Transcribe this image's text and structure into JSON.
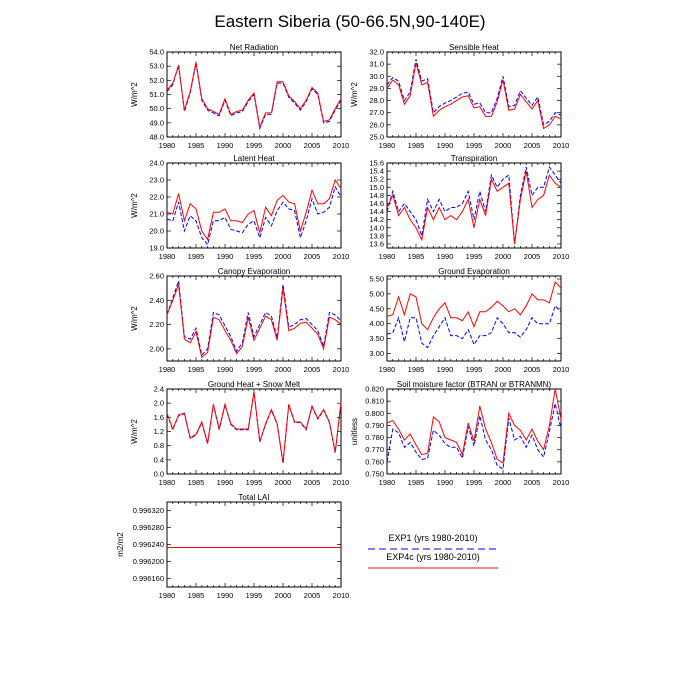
{
  "title": "Eastern Siberia (50-66.5N,90-140E)",
  "legend": {
    "items": [
      {
        "label": "EXP1 (yrs 1980-2010)",
        "color": "#0000ff",
        "dash": true
      },
      {
        "label": "EXP4c (yrs 1980-2010)",
        "color": "#ff0000",
        "dash": false
      }
    ]
  },
  "chart_data": [
    {
      "type": "line",
      "title": "Net Radiation",
      "ylabel": "W/m^2",
      "xlim": [
        1980,
        2010
      ],
      "ylim": [
        48.0,
        54.0
      ],
      "xticks": [
        1980,
        1985,
        1990,
        1995,
        2000,
        2005,
        2010
      ],
      "yticks": [
        "48.0",
        "49.0",
        "50.0",
        "51.0",
        "52.0",
        "53.0",
        "54.0"
      ],
      "x": [
        1980,
        1981,
        1982,
        1983,
        1984,
        1985,
        1986,
        1987,
        1988,
        1989,
        1990,
        1991,
        1992,
        1993,
        1994,
        1995,
        1996,
        1997,
        1998,
        1999,
        2000,
        2001,
        2002,
        2003,
        2004,
        2005,
        2006,
        2007,
        2008,
        2009,
        2010
      ],
      "series": [
        {
          "name": "EXP1",
          "values": [
            51.2,
            51.7,
            53.1,
            49.8,
            51.1,
            53.2,
            50.6,
            49.9,
            49.7,
            49.5,
            50.6,
            49.5,
            49.7,
            49.8,
            50.5,
            51.0,
            48.6,
            49.6,
            49.6,
            51.8,
            51.8,
            50.8,
            50.4,
            49.9,
            50.5,
            51.4,
            51.0,
            49.0,
            49.1,
            49.9,
            50.6
          ]
        },
        {
          "name": "EXP4c",
          "values": [
            51.3,
            51.8,
            53.0,
            49.9,
            51.2,
            53.3,
            50.7,
            50.0,
            49.8,
            49.6,
            50.7,
            49.6,
            49.8,
            49.9,
            50.6,
            51.1,
            48.7,
            49.7,
            49.7,
            51.9,
            51.9,
            50.9,
            50.5,
            50.0,
            50.6,
            51.5,
            51.1,
            49.1,
            49.2,
            50.0,
            50.7
          ]
        }
      ]
    },
    {
      "type": "line",
      "title": "Sensible Heat",
      "ylabel": "W/m^2",
      "xlim": [
        1980,
        2010
      ],
      "ylim": [
        25.0,
        32.0
      ],
      "xticks": [
        1980,
        1985,
        1990,
        1995,
        2000,
        2005,
        2010
      ],
      "yticks": [
        "25.0",
        "26.0",
        "27.0",
        "28.0",
        "29.0",
        "30.0",
        "31.0",
        "32.0"
      ],
      "x": [
        1980,
        1981,
        1982,
        1983,
        1984,
        1985,
        1986,
        1987,
        1988,
        1989,
        1990,
        1991,
        1992,
        1993,
        1994,
        1995,
        1996,
        1997,
        1998,
        1999,
        2000,
        2001,
        2002,
        2003,
        2004,
        2005,
        2006,
        2007,
        2008,
        2009,
        2010
      ],
      "series": [
        {
          "name": "EXP1",
          "values": [
            29.3,
            29.9,
            29.6,
            28.0,
            28.7,
            31.4,
            29.6,
            29.8,
            27.0,
            27.5,
            27.8,
            28.0,
            28.3,
            28.6,
            28.7,
            27.7,
            27.8,
            27.0,
            27.0,
            28.2,
            30.0,
            27.5,
            27.6,
            28.8,
            28.2,
            27.6,
            28.3,
            26.0,
            26.3,
            27.0,
            26.8
          ]
        },
        {
          "name": "EXP4c",
          "values": [
            29.0,
            29.7,
            29.3,
            27.7,
            28.4,
            31.1,
            29.3,
            29.5,
            26.7,
            27.2,
            27.5,
            27.7,
            28.0,
            28.3,
            28.4,
            27.4,
            27.5,
            26.7,
            26.7,
            27.9,
            29.7,
            27.2,
            27.3,
            28.5,
            27.9,
            27.3,
            28.0,
            25.7,
            26.0,
            26.7,
            26.5
          ]
        }
      ]
    },
    {
      "type": "line",
      "title": "Latent Heat",
      "ylabel": "W/m^2",
      "xlim": [
        1980,
        2010
      ],
      "ylim": [
        19.0,
        24.0
      ],
      "xticks": [
        1980,
        1985,
        1990,
        1995,
        2000,
        2005,
        2010
      ],
      "yticks": [
        "19.0",
        "20.0",
        "21.0",
        "22.0",
        "23.0",
        "24.0"
      ],
      "x": [
        1980,
        1981,
        1982,
        1983,
        1984,
        1985,
        1986,
        1987,
        1988,
        1989,
        1990,
        1991,
        1992,
        1993,
        1994,
        1995,
        1996,
        1997,
        1998,
        1999,
        2000,
        2001,
        2002,
        2003,
        2004,
        2005,
        2006,
        2007,
        2008,
        2009,
        2010
      ],
      "series": [
        {
          "name": "EXP1",
          "values": [
            20.7,
            20.6,
            21.7,
            20.0,
            20.9,
            20.6,
            19.6,
            19.2,
            20.6,
            20.6,
            20.8,
            20.1,
            20.0,
            19.9,
            20.4,
            20.6,
            19.6,
            20.8,
            20.3,
            21.2,
            21.7,
            21.3,
            21.2,
            19.6,
            20.6,
            21.9,
            21.0,
            21.1,
            21.4,
            22.6,
            22.0
          ]
        },
        {
          "name": "EXP4c",
          "values": [
            21.1,
            21.0,
            22.2,
            20.6,
            21.6,
            21.3,
            20.0,
            19.5,
            21.1,
            21.1,
            21.3,
            20.6,
            20.6,
            20.5,
            21.0,
            21.2,
            19.9,
            21.4,
            20.9,
            21.8,
            22.1,
            21.7,
            21.6,
            20.0,
            21.1,
            22.4,
            21.6,
            21.6,
            21.9,
            23.0,
            22.5
          ]
        }
      ]
    },
    {
      "type": "line",
      "title": "Transpiration",
      "ylabel": "",
      "xlim": [
        1980,
        2010
      ],
      "ylim": [
        13.5,
        15.6
      ],
      "xticks": [
        1980,
        1985,
        1990,
        1995,
        2000,
        2005,
        2010
      ],
      "yticks": [
        "13.6",
        "13.8",
        "14.0",
        "14.2",
        "14.4",
        "14.6",
        "14.8",
        "15.0",
        "15.2",
        "15.4",
        "15.6"
      ],
      "x": [
        1980,
        1981,
        1982,
        1983,
        1984,
        1985,
        1986,
        1987,
        1988,
        1989,
        1990,
        1991,
        1992,
        1993,
        1994,
        1995,
        1996,
        1997,
        1998,
        1999,
        2000,
        2001,
        2002,
        2003,
        2004,
        2005,
        2006,
        2007,
        2008,
        2009,
        2010
      ],
      "series": [
        {
          "name": "EXP1",
          "values": [
            14.4,
            14.9,
            14.4,
            14.6,
            14.4,
            14.2,
            13.8,
            14.7,
            14.4,
            14.7,
            14.4,
            14.5,
            14.5,
            14.6,
            14.9,
            14.2,
            14.9,
            14.4,
            15.3,
            15.0,
            15.2,
            15.3,
            13.6,
            14.8,
            15.5,
            14.8,
            15.0,
            15.0,
            15.5,
            15.3,
            15.1
          ]
        },
        {
          "name": "EXP4c",
          "values": [
            14.5,
            14.8,
            14.3,
            14.5,
            14.2,
            14.0,
            13.7,
            14.5,
            14.2,
            14.5,
            14.2,
            14.3,
            14.2,
            14.4,
            14.7,
            14.0,
            14.7,
            14.3,
            15.2,
            14.9,
            15.0,
            15.1,
            13.6,
            14.7,
            15.4,
            14.5,
            14.7,
            14.8,
            15.3,
            15.1,
            15.0
          ]
        }
      ]
    },
    {
      "type": "line",
      "title": "Canopy Evaporation",
      "ylabel": "W/m^2",
      "xlim": [
        1980,
        2010
      ],
      "ylim": [
        1.9,
        2.6
      ],
      "xticks": [
        1980,
        1985,
        1990,
        1995,
        2000,
        2005,
        2010
      ],
      "yticks": [
        "2.00",
        "2.20",
        "2.40",
        "2.60"
      ],
      "x": [
        1980,
        1981,
        1982,
        1983,
        1984,
        1985,
        1986,
        1987,
        1988,
        1989,
        1990,
        1991,
        1992,
        1993,
        1994,
        1995,
        1996,
        1997,
        1998,
        1999,
        2000,
        2001,
        2002,
        2003,
        2004,
        2005,
        2006,
        2007,
        2008,
        2009,
        2010
      ],
      "series": [
        {
          "name": "EXP1",
          "values": [
            2.28,
            2.42,
            2.56,
            2.1,
            2.08,
            2.17,
            1.95,
            2.0,
            2.3,
            2.28,
            2.19,
            2.1,
            1.98,
            2.05,
            2.3,
            2.1,
            2.2,
            2.3,
            2.27,
            2.09,
            2.53,
            2.18,
            2.2,
            2.24,
            2.25,
            2.2,
            2.15,
            2.02,
            2.3,
            2.28,
            2.23
          ]
        },
        {
          "name": "EXP4c",
          "values": [
            2.28,
            2.4,
            2.53,
            2.08,
            2.05,
            2.14,
            1.93,
            1.97,
            2.26,
            2.24,
            2.15,
            2.07,
            1.96,
            2.02,
            2.26,
            2.07,
            2.17,
            2.27,
            2.24,
            2.07,
            2.5,
            2.15,
            2.17,
            2.21,
            2.22,
            2.17,
            2.12,
            2.0,
            2.26,
            2.24,
            2.2
          ]
        }
      ]
    },
    {
      "type": "line",
      "title": "Ground Evaporation",
      "ylabel": "",
      "xlim": [
        1980,
        2010
      ],
      "ylim": [
        2.75,
        5.6
      ],
      "xticks": [
        1980,
        1985,
        1990,
        1995,
        2000,
        2005,
        2010
      ],
      "yticks": [
        "3.00",
        "3.50",
        "4.00",
        "4.50",
        "5.00",
        "5.50"
      ],
      "x": [
        1980,
        1981,
        1982,
        1983,
        1984,
        1985,
        1986,
        1987,
        1988,
        1989,
        1990,
        1991,
        1992,
        1993,
        1994,
        1995,
        1996,
        1997,
        1998,
        1999,
        2000,
        2001,
        2002,
        2003,
        2004,
        2005,
        2006,
        2007,
        2008,
        2009,
        2010
      ],
      "series": [
        {
          "name": "EXP1",
          "values": [
            3.65,
            3.7,
            4.2,
            3.4,
            4.2,
            4.2,
            3.35,
            3.2,
            3.6,
            3.9,
            4.2,
            3.6,
            3.6,
            3.5,
            3.8,
            3.3,
            3.6,
            3.6,
            3.7,
            4.2,
            4.0,
            3.7,
            3.7,
            3.55,
            3.8,
            4.2,
            4.0,
            4.0,
            4.0,
            4.6,
            4.4
          ]
        },
        {
          "name": "EXP4c",
          "values": [
            4.25,
            4.3,
            4.9,
            4.3,
            5.0,
            4.9,
            4.0,
            3.8,
            4.2,
            4.5,
            4.7,
            4.2,
            4.2,
            4.1,
            4.4,
            3.9,
            4.4,
            4.4,
            4.55,
            4.75,
            4.6,
            4.4,
            4.5,
            4.3,
            4.6,
            5.0,
            4.8,
            4.8,
            4.7,
            5.4,
            5.2
          ]
        }
      ]
    },
    {
      "type": "line",
      "title": "Ground Heat + Snow Melt",
      "ylabel": "W/m^2",
      "xlim": [
        1980,
        2010
      ],
      "ylim": [
        0.0,
        2.4
      ],
      "xticks": [
        1980,
        1985,
        1990,
        1995,
        2000,
        2005,
        2010
      ],
      "yticks": [
        "0.0",
        "0.4",
        "0.8",
        "1.2",
        "1.6",
        "2.0",
        "2.4"
      ],
      "x": [
        1980,
        1981,
        1982,
        1983,
        1984,
        1985,
        1986,
        1987,
        1988,
        1989,
        1990,
        1991,
        1992,
        1993,
        1994,
        1995,
        1996,
        1997,
        1998,
        1999,
        2000,
        2001,
        2002,
        2003,
        2004,
        2005,
        2006,
        2007,
        2008,
        2009,
        2010
      ],
      "series": [
        {
          "name": "EXP1",
          "values": [
            1.7,
            1.25,
            1.65,
            1.7,
            1.0,
            1.1,
            1.45,
            0.85,
            1.95,
            1.25,
            1.95,
            1.4,
            1.25,
            1.25,
            1.25,
            2.3,
            0.9,
            1.4,
            1.8,
            1.4,
            0.3,
            1.95,
            1.45,
            1.45,
            1.25,
            1.9,
            1.55,
            1.8,
            1.45,
            0.6,
            2.0
          ]
        },
        {
          "name": "EXP4c",
          "values": [
            1.72,
            1.27,
            1.67,
            1.72,
            1.02,
            1.12,
            1.47,
            0.87,
            1.97,
            1.27,
            1.97,
            1.42,
            1.27,
            1.27,
            1.27,
            2.32,
            0.92,
            1.42,
            1.82,
            1.42,
            0.32,
            1.97,
            1.47,
            1.47,
            1.27,
            1.92,
            1.57,
            1.82,
            1.47,
            0.62,
            2.02
          ]
        }
      ]
    },
    {
      "type": "line",
      "title": "Soil moisture factor (BTRAN or BTRANMN)",
      "ylabel": "unitless",
      "xlim": [
        1980,
        2010
      ],
      "ylim": [
        0.75,
        0.82
      ],
      "xticks": [
        1980,
        1985,
        1990,
        1995,
        2000,
        2005,
        2010
      ],
      "yticks": [
        "0.750",
        "0.760",
        "0.770",
        "0.780",
        "0.790",
        "0.800",
        "0.810",
        "0.820"
      ],
      "x": [
        1980,
        1981,
        1982,
        1983,
        1984,
        1985,
        1986,
        1987,
        1988,
        1989,
        1990,
        1991,
        1992,
        1993,
        1994,
        1995,
        1996,
        1997,
        1998,
        1999,
        2000,
        2001,
        2002,
        2003,
        2004,
        2005,
        2006,
        2007,
        2008,
        2009,
        2010
      ],
      "series": [
        {
          "name": "EXP1",
          "values": [
            0.76,
            0.787,
            0.784,
            0.772,
            0.776,
            0.768,
            0.762,
            0.763,
            0.786,
            0.782,
            0.775,
            0.772,
            0.772,
            0.763,
            0.789,
            0.773,
            0.798,
            0.778,
            0.77,
            0.757,
            0.754,
            0.796,
            0.778,
            0.781,
            0.772,
            0.782,
            0.77,
            0.764,
            0.785,
            0.808,
            0.787
          ]
        },
        {
          "name": "EXP4c",
          "values": [
            0.792,
            0.794,
            0.787,
            0.778,
            0.783,
            0.774,
            0.766,
            0.767,
            0.797,
            0.793,
            0.78,
            0.778,
            0.776,
            0.766,
            0.792,
            0.777,
            0.806,
            0.787,
            0.776,
            0.762,
            0.759,
            0.8,
            0.79,
            0.786,
            0.778,
            0.787,
            0.777,
            0.77,
            0.79,
            0.82,
            0.795
          ]
        }
      ]
    },
    {
      "type": "line",
      "title": "Total LAI",
      "ylabel": "m2/m2",
      "xlim": [
        1980,
        2010
      ],
      "ylim": [
        0.99614,
        0.99634
      ],
      "xticks": [
        1980,
        1985,
        1990,
        1995,
        2000,
        2005,
        2010
      ],
      "yticks": [
        "0.996160",
        "0.996200",
        "0.996240",
        "0.996280",
        "0.996320"
      ],
      "x": [
        1980,
        2010
      ],
      "series": [
        {
          "name": "EXP1",
          "values": [
            0.996233,
            0.996233
          ]
        },
        {
          "name": "EXP4c",
          "values": [
            0.996233,
            0.996233
          ]
        }
      ]
    }
  ]
}
